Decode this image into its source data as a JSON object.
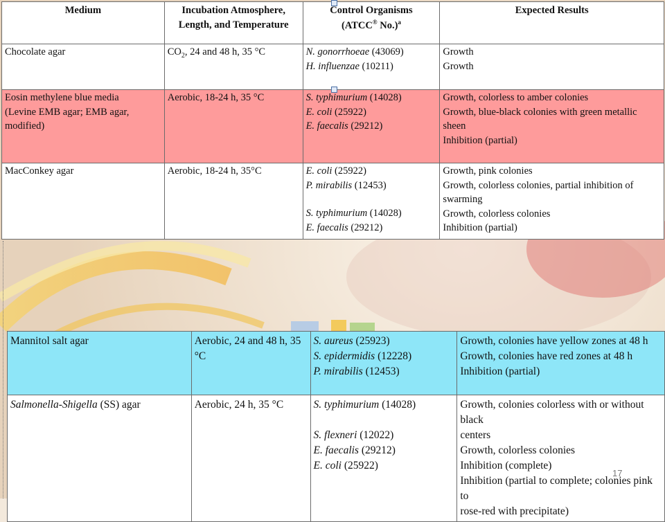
{
  "headers": {
    "medium": "Medium",
    "incubation_line1": "Incubation Atmosphere,",
    "incubation_line2": "Length, and Temperature",
    "control_line1": "Control Organisms",
    "control_line2": "(ATCC",
    "control_reg": "®",
    "control_line2_end": " No.)",
    "control_sup": "a",
    "results": "Expected Results"
  },
  "top_rows": [
    {
      "medium": [
        "Chocolate agar"
      ],
      "incubation_pre": "CO",
      "incubation_sub": "2",
      "incubation_post": ", 24 and 48 h, 35 °C",
      "organisms": [
        {
          "name": "N. gonorrhoeae",
          "atcc": " (43069)"
        },
        {
          "name": "H. influenzae",
          "atcc": " (10211)"
        }
      ],
      "results": [
        "Growth",
        "Growth"
      ]
    },
    {
      "medium": [
        "Eosin methylene blue media",
        "(Levine EMB agar; EMB agar,",
        "modified)"
      ],
      "incubation": "Aerobic, 18-24 h, 35 °C",
      "organisms": [
        {
          "name": "S. typhimurium",
          "atcc": " (14028)"
        },
        {
          "name": "E. coli",
          "atcc": " (25922)"
        },
        {
          "name": "E. faecalis",
          "atcc": " (29212)"
        }
      ],
      "results": [
        "Growth, colorless to amber colonies",
        "Growth, blue-black colonies with green metallic",
        "sheen",
        "Inhibition (partial)"
      ]
    },
    {
      "medium": [
        "MacConkey agar"
      ],
      "incubation": "Aerobic, 18-24 h, 35°C",
      "organisms": [
        {
          "name": "E. coli",
          "atcc": " (25922)"
        },
        {
          "name": "P. mirabilis",
          "atcc": " (12453)"
        },
        {
          "name": "S.  typhimurium",
          "atcc": " (14028)"
        },
        {
          "name": "E. faecalis",
          "atcc": " (29212)"
        }
      ],
      "results": [
        "Growth, pink colonies",
        "Growth, colorless colonies, partial inhibition of",
        "swarming",
        "Growth, colorless colonies",
        "Inhibition (partial)"
      ]
    }
  ],
  "bottom_rows": [
    {
      "medium": [
        "Mannitol salt agar"
      ],
      "incubation": "Aerobic, 24 and 48 h, 35 °C",
      "organisms": [
        {
          "name": "S. aureus",
          "atcc": " (25923)"
        },
        {
          "name": "S. epidermidis",
          "atcc": " (12228)"
        },
        {
          "name": "P. mirabilis",
          "atcc": " (12453)"
        }
      ],
      "results": [
        "Growth, colonies have yellow zones at 48 h",
        "Growth, colonies have red zones at 48 h",
        "Inhibition (partial)"
      ]
    },
    {
      "medium_italic": "Salmonella-Shigella",
      "medium_rest": " (SS) agar",
      "incubation": "Aerobic, 24 h, 35 °C",
      "organisms": [
        {
          "name": "S. typhimurium",
          "atcc": " (14028)"
        },
        {
          "name": "S. flexneri",
          "atcc": " (12022)"
        },
        {
          "name": "E. faecalis",
          "atcc": " (29212)"
        },
        {
          "name": "E. coli",
          "atcc": " (25922)"
        }
      ],
      "results": [
        "Growth, colonies colorless with or without black",
        "centers",
        "Growth, colorless colonies",
        "Inhibition (complete)",
        "Inhibition (partial to complete; colonies pink to",
        "rose-red with precipitate)"
      ]
    }
  ],
  "page_number": "17",
  "colors": {
    "highlight_red": "#fe9b9b",
    "highlight_cyan": "#8ee6f8"
  }
}
